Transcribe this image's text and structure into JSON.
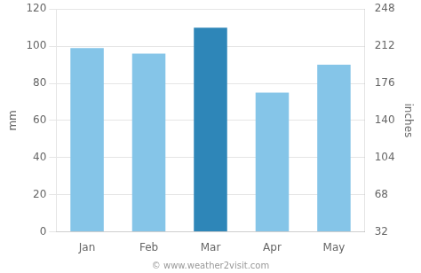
{
  "chart_data": {
    "type": "bar",
    "categories": [
      "Jan",
      "Feb",
      "Mar",
      "Apr",
      "May"
    ],
    "values": [
      99,
      96,
      110,
      75,
      90
    ],
    "colors": [
      "#85c5e8",
      "#85c5e8",
      "#2e86b8",
      "#85c5e8",
      "#85c5e8"
    ],
    "ylabel": "mm",
    "y2label": "inches",
    "ylim": [
      0,
      120
    ],
    "yticks": [
      0,
      20,
      40,
      60,
      80,
      100,
      120
    ],
    "y2lim": [
      32,
      248
    ],
    "y2ticks": [
      32,
      68,
      104,
      140,
      176,
      212,
      248
    ],
    "grid": true,
    "annotation": "© www.weather2visit.com"
  }
}
